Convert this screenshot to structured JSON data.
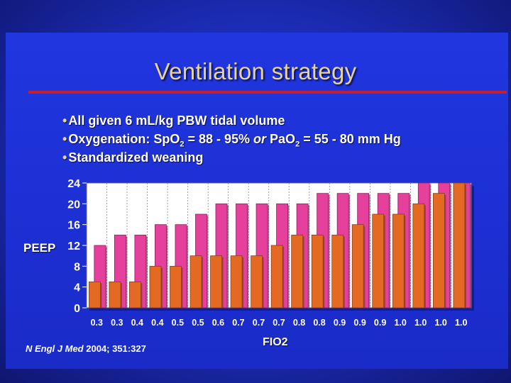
{
  "slide": {
    "title": "Ventilation strategy",
    "bullets": [
      {
        "dot": "•",
        "text": "All given 6 mL/kg PBW tidal volume"
      },
      {
        "dot": "•",
        "p1": "Oxygenation:  SpO",
        "sub1": "2",
        "p2": " = 88 - 95%  ",
        "em": "or",
        "p3": " PaO",
        "sub2": "2",
        "p4": " = 55 - 80 mm Hg"
      },
      {
        "dot": "•",
        "text": "Standardized weaning"
      }
    ],
    "citation": {
      "journal": "N Engl J Med",
      "rest": " 2004; 351:327"
    }
  },
  "colors": {
    "background": "#1c2fd2",
    "title": "#e7d49a",
    "rule": "#c81d2a",
    "pink_bar": "#e5419c",
    "orange_bar": "#e46a24",
    "plot_bg": "#ffffff",
    "grid": "#8a8a8a"
  },
  "chart_data": {
    "type": "bar",
    "xlabel": "FIO2",
    "ylabel": "PEEP",
    "ylim": [
      0,
      24
    ],
    "yticks": [
      0,
      4,
      8,
      12,
      16,
      20,
      24
    ],
    "grid": true,
    "categories": [
      "0.3",
      "0.3",
      "0.4",
      "0.4",
      "0.5",
      "0.5",
      "0.6",
      "0.7",
      "0.7",
      "0.7",
      "0.8",
      "0.8",
      "0.9",
      "0.9",
      "0.9",
      "1.0",
      "1.0",
      "1.0",
      "1.0"
    ],
    "series": [
      {
        "color": "#e46a24",
        "values": [
          5,
          5,
          5,
          8,
          8,
          10,
          10,
          10,
          10,
          12,
          14,
          14,
          14,
          16,
          18,
          18,
          20,
          22,
          24
        ]
      },
      {
        "color": "#e5419c",
        "values": [
          12,
          14,
          14,
          16,
          16,
          18,
          20,
          20,
          20,
          20,
          20,
          22,
          22,
          22,
          22,
          22,
          24,
          24,
          24
        ]
      }
    ]
  }
}
